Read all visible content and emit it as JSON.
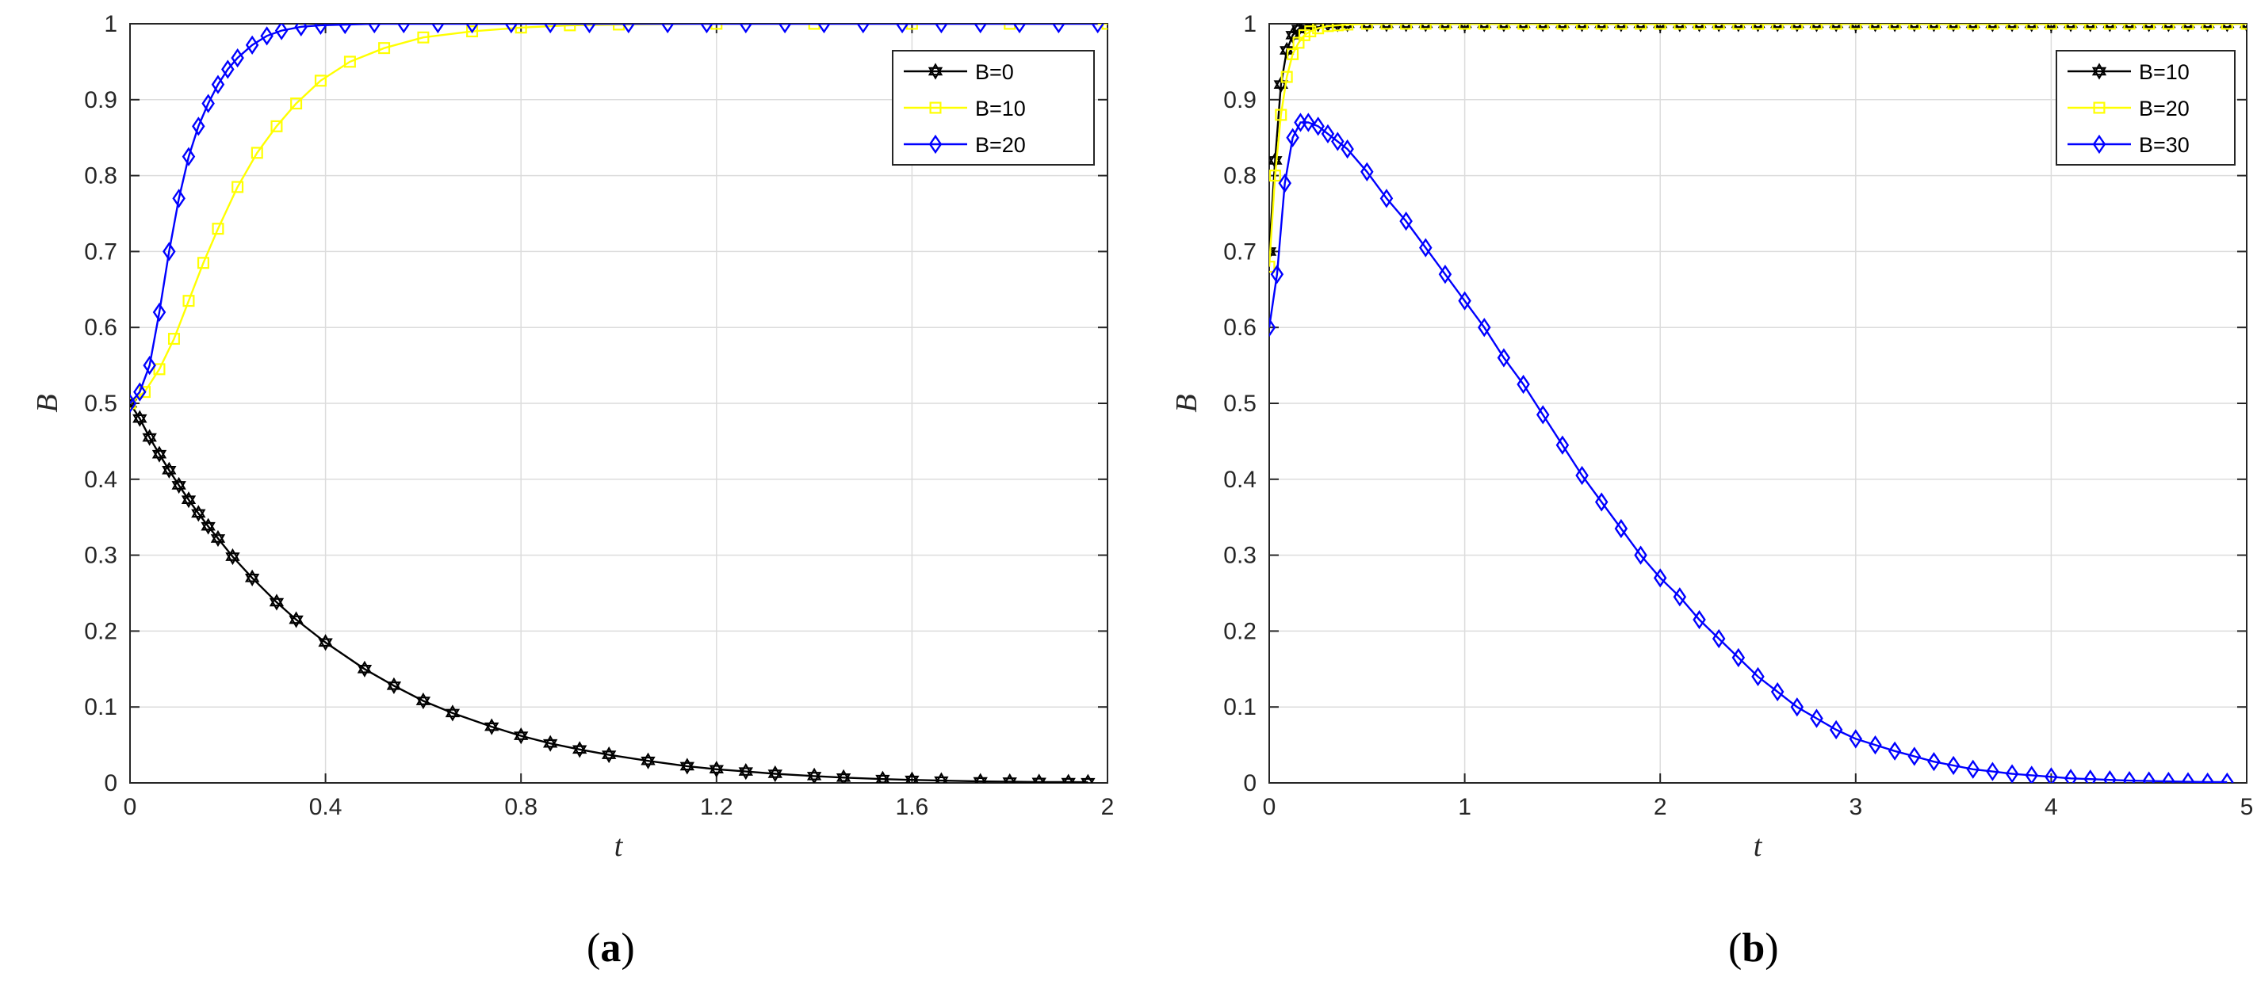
{
  "chart_data": [
    {
      "type": "line",
      "caption_open": "(",
      "caption_letter": "a",
      "caption_close": ")",
      "xlabel": "t",
      "ylabel": "B",
      "xlim": [
        0,
        2
      ],
      "ylim": [
        0,
        1
      ],
      "xticks": [
        0,
        0.4,
        0.8,
        1.2,
        1.6,
        2
      ],
      "xtick_labels": [
        "0",
        "0.4",
        "0.8",
        "1.2",
        "1.6",
        "2"
      ],
      "yticks": [
        0,
        0.1,
        0.2,
        0.3,
        0.4,
        0.5,
        0.6,
        0.7,
        0.8,
        0.9,
        1
      ],
      "ytick_labels": [
        "0",
        "0.1",
        "0.2",
        "0.3",
        "0.4",
        "0.5",
        "0.6",
        "0.7",
        "0.8",
        "0.9",
        "1"
      ],
      "grid": true,
      "legend_position": "top-right",
      "series": [
        {
          "name": "B=0",
          "color": "#000000",
          "marker": "hexagram",
          "x": [
            0,
            0.02,
            0.04,
            0.06,
            0.08,
            0.1,
            0.12,
            0.14,
            0.16,
            0.18,
            0.21,
            0.25,
            0.3,
            0.34,
            0.4,
            0.48,
            0.54,
            0.6,
            0.66,
            0.74,
            0.8,
            0.86,
            0.92,
            0.98,
            1.06,
            1.14,
            1.2,
            1.26,
            1.32,
            1.4,
            1.46,
            1.54,
            1.6,
            1.66,
            1.74,
            1.8,
            1.86,
            1.92,
            1.96
          ],
          "y": [
            0.5,
            0.48,
            0.455,
            0.433,
            0.412,
            0.392,
            0.373,
            0.355,
            0.338,
            0.322,
            0.298,
            0.27,
            0.238,
            0.215,
            0.185,
            0.15,
            0.128,
            0.108,
            0.092,
            0.074,
            0.062,
            0.052,
            0.044,
            0.037,
            0.029,
            0.022,
            0.018,
            0.015,
            0.012,
            0.009,
            0.007,
            0.005,
            0.004,
            0.003,
            0.002,
            0.0016,
            0.0012,
            0.001,
            0.0008
          ]
        },
        {
          "name": "B=10",
          "color": "#ffff00",
          "marker": "square",
          "x": [
            0,
            0.03,
            0.06,
            0.09,
            0.12,
            0.15,
            0.18,
            0.22,
            0.26,
            0.3,
            0.34,
            0.39,
            0.45,
            0.52,
            0.6,
            0.7,
            0.8,
            0.9,
            1.0,
            1.2,
            1.4,
            1.6,
            1.8,
            2.0
          ],
          "y": [
            0.5,
            0.515,
            0.545,
            0.585,
            0.635,
            0.685,
            0.73,
            0.785,
            0.83,
            0.865,
            0.895,
            0.925,
            0.95,
            0.968,
            0.982,
            0.99,
            0.995,
            0.998,
            0.999,
            1,
            1,
            1,
            1,
            1
          ]
        },
        {
          "name": "B=20",
          "color": "#0000ff",
          "marker": "diamond",
          "x": [
            0,
            0.02,
            0.04,
            0.06,
            0.08,
            0.1,
            0.12,
            0.14,
            0.16,
            0.18,
            0.2,
            0.22,
            0.25,
            0.28,
            0.31,
            0.35,
            0.39,
            0.44,
            0.5,
            0.56,
            0.63,
            0.7,
            0.78,
            0.86,
            0.94,
            1.02,
            1.1,
            1.18,
            1.26,
            1.34,
            1.42,
            1.5,
            1.58,
            1.66,
            1.74,
            1.82,
            1.9,
            1.98
          ],
          "y": [
            0.5,
            0.515,
            0.55,
            0.62,
            0.7,
            0.77,
            0.825,
            0.865,
            0.895,
            0.92,
            0.94,
            0.955,
            0.972,
            0.984,
            0.991,
            0.996,
            0.998,
            0.999,
            1,
            1,
            1,
            1,
            1,
            1,
            1,
            1,
            1,
            1,
            1,
            1,
            1,
            1,
            1,
            1,
            1,
            1,
            1,
            1
          ]
        }
      ]
    },
    {
      "type": "line",
      "caption_open": "(",
      "caption_letter": "b",
      "caption_close": ")",
      "xlabel": "t",
      "ylabel": "B",
      "xlim": [
        0,
        5
      ],
      "ylim": [
        0,
        1
      ],
      "xticks": [
        0,
        1,
        2,
        3,
        4,
        5
      ],
      "xtick_labels": [
        "0",
        "1",
        "2",
        "3",
        "4",
        "5"
      ],
      "yticks": [
        0,
        0.1,
        0.2,
        0.3,
        0.4,
        0.5,
        0.6,
        0.7,
        0.8,
        0.9,
        1
      ],
      "ytick_labels": [
        "0",
        "0.1",
        "0.2",
        "0.3",
        "0.4",
        "0.5",
        "0.6",
        "0.7",
        "0.8",
        "0.9",
        "1"
      ],
      "grid": true,
      "legend_position": "top-right",
      "series": [
        {
          "name": "B=10",
          "color": "#000000",
          "marker": "hexagram",
          "x": [
            0,
            0.03,
            0.06,
            0.09,
            0.12,
            0.15,
            0.18,
            0.21,
            0.25,
            0.3,
            0.35,
            0.4,
            0.5,
            0.6,
            0.7,
            0.8,
            0.9,
            1.0,
            1.1,
            1.2,
            1.3,
            1.4,
            1.5,
            1.6,
            1.7,
            1.8,
            1.9,
            2.0,
            2.1,
            2.2,
            2.3,
            2.4,
            2.5,
            2.6,
            2.7,
            2.8,
            2.9,
            3.0,
            3.1,
            3.2,
            3.3,
            3.4,
            3.5,
            3.6,
            3.7,
            3.8,
            3.9,
            4.0,
            4.1,
            4.2,
            4.3,
            4.4,
            4.5,
            4.6,
            4.7,
            4.8,
            4.9,
            5.0
          ],
          "y": [
            0.7,
            0.82,
            0.92,
            0.965,
            0.985,
            0.993,
            0.997,
            0.999,
            1,
            1,
            1,
            1,
            1,
            1,
            1,
            1,
            1,
            1,
            1,
            1,
            1,
            1,
            1,
            1,
            1,
            1,
            1,
            1,
            1,
            1,
            1,
            1,
            1,
            1,
            1,
            1,
            1,
            1,
            1,
            1,
            1,
            1,
            1,
            1,
            1,
            1,
            1,
            1,
            1,
            1,
            1,
            1,
            1,
            1,
            1,
            1,
            1,
            1
          ]
        },
        {
          "name": "B=20",
          "color": "#ffff00",
          "marker": "square",
          "x": [
            0,
            0.03,
            0.06,
            0.09,
            0.12,
            0.15,
            0.18,
            0.21,
            0.25,
            0.3,
            0.35,
            0.4,
            0.5,
            0.6,
            0.7,
            0.8,
            0.9,
            1.0,
            1.1,
            1.2,
            1.3,
            1.4,
            1.5,
            1.6,
            1.7,
            1.8,
            1.9,
            2.0,
            2.1,
            2.2,
            2.3,
            2.4,
            2.5,
            2.6,
            2.7,
            2.8,
            2.9,
            3.0,
            3.1,
            3.2,
            3.3,
            3.4,
            3.5,
            3.6,
            3.7,
            3.8,
            3.9,
            4.0,
            4.1,
            4.2,
            4.3,
            4.4,
            4.5,
            4.6,
            4.7,
            4.8,
            4.9,
            5.0
          ],
          "y": [
            0.68,
            0.8,
            0.88,
            0.93,
            0.96,
            0.975,
            0.985,
            0.99,
            0.994,
            0.997,
            0.998,
            0.999,
            1,
            1,
            1,
            1,
            1,
            1,
            1,
            1,
            1,
            1,
            1,
            1,
            1,
            1,
            1,
            1,
            1,
            1,
            1,
            1,
            1,
            1,
            1,
            1,
            1,
            1,
            1,
            1,
            1,
            1,
            1,
            1,
            1,
            1,
            1,
            1,
            1,
            1,
            1,
            1,
            1,
            1,
            1,
            1,
            1,
            1
          ]
        },
        {
          "name": "B=30",
          "color": "#0000ff",
          "marker": "diamond",
          "x": [
            0,
            0.04,
            0.08,
            0.12,
            0.16,
            0.2,
            0.25,
            0.3,
            0.35,
            0.4,
            0.5,
            0.6,
            0.7,
            0.8,
            0.9,
            1.0,
            1.1,
            1.2,
            1.3,
            1.4,
            1.5,
            1.6,
            1.7,
            1.8,
            1.9,
            2.0,
            2.1,
            2.2,
            2.3,
            2.4,
            2.5,
            2.6,
            2.7,
            2.8,
            2.9,
            3.0,
            3.1,
            3.2,
            3.3,
            3.4,
            3.5,
            3.6,
            3.7,
            3.8,
            3.9,
            4.0,
            4.1,
            4.2,
            4.3,
            4.4,
            4.5,
            4.6,
            4.7,
            4.8,
            4.9
          ],
          "y": [
            0.6,
            0.67,
            0.79,
            0.85,
            0.87,
            0.87,
            0.865,
            0.855,
            0.845,
            0.835,
            0.805,
            0.77,
            0.74,
            0.705,
            0.67,
            0.635,
            0.6,
            0.56,
            0.525,
            0.485,
            0.445,
            0.405,
            0.37,
            0.335,
            0.3,
            0.27,
            0.245,
            0.215,
            0.19,
            0.165,
            0.14,
            0.12,
            0.1,
            0.085,
            0.07,
            0.058,
            0.05,
            0.042,
            0.035,
            0.028,
            0.023,
            0.018,
            0.015,
            0.012,
            0.01,
            0.008,
            0.006,
            0.005,
            0.004,
            0.003,
            0.0025,
            0.002,
            0.0015,
            0.001,
            0.001
          ]
        }
      ]
    }
  ]
}
